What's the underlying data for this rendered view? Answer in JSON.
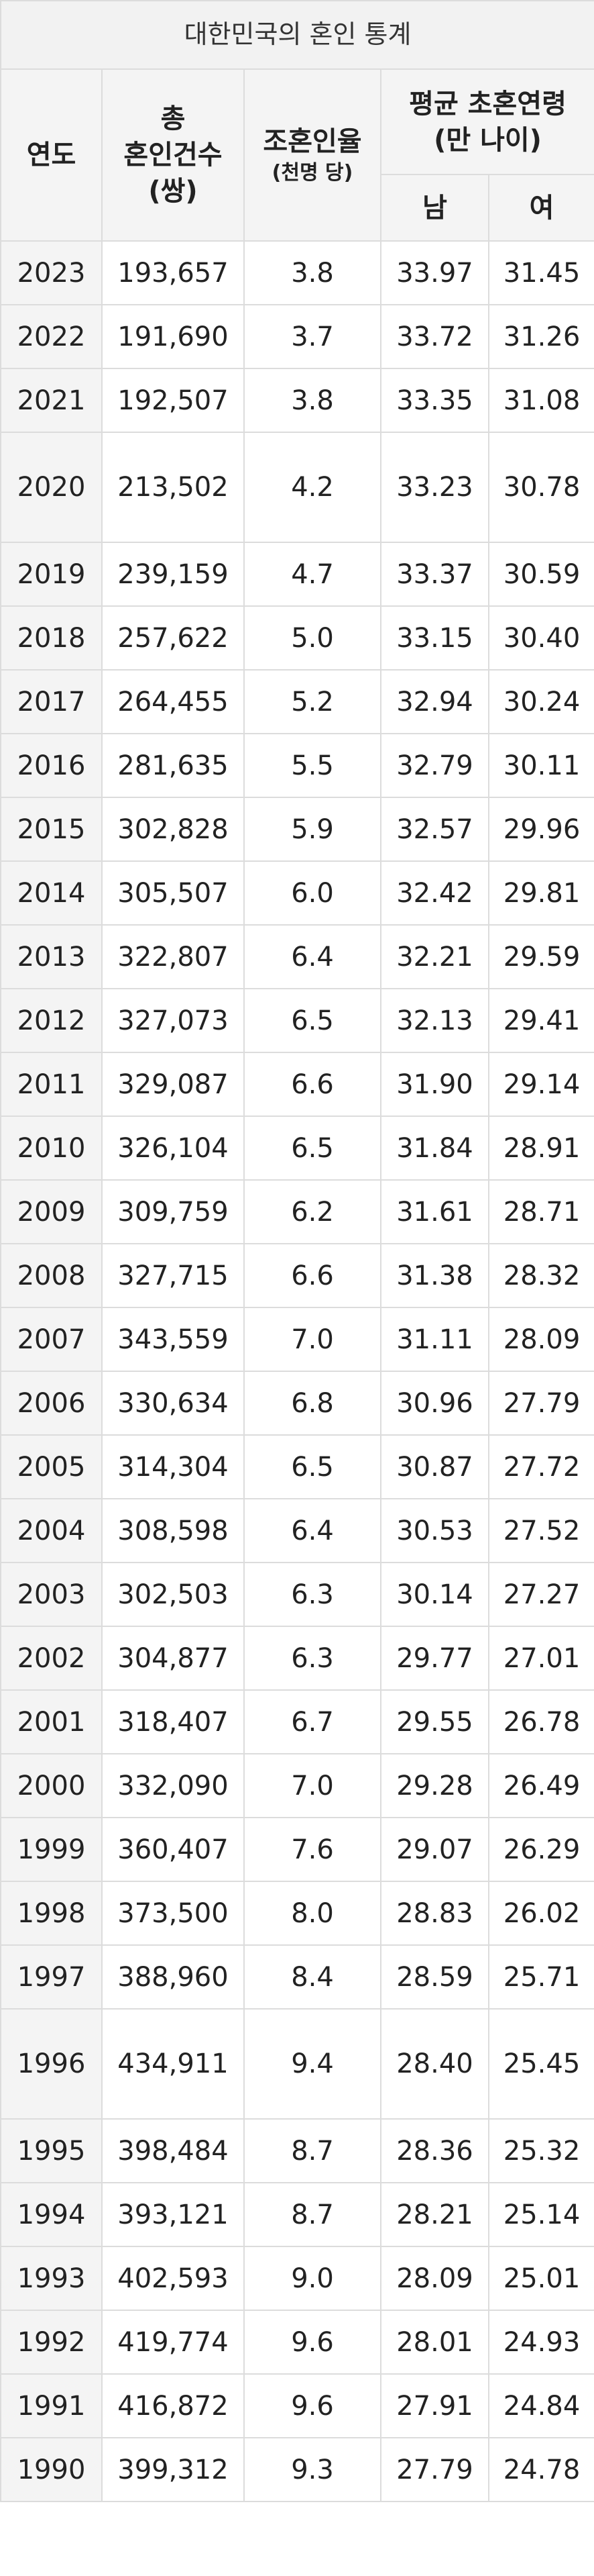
{
  "table": {
    "caption": "대한민국의 혼인 통계",
    "headers": {
      "year": "연도",
      "total": [
        "총",
        "혼인건수",
        "(쌍)"
      ],
      "rate": [
        "조혼인율",
        "(천명 당)"
      ],
      "age": [
        "평균 초혼연령",
        "(만 나이)"
      ],
      "male": "남",
      "female": "여"
    },
    "rows": [
      [
        "2023",
        "193,657",
        "3.8",
        "33.97",
        "31.45"
      ],
      [
        "2022",
        "191,690",
        "3.7",
        "33.72",
        "31.26"
      ],
      [
        "2021",
        "192,507",
        "3.8",
        "33.35",
        "31.08"
      ],
      [
        "2020",
        "213,502",
        "4.2",
        "33.23",
        "30.78"
      ],
      [
        "2019",
        "239,159",
        "4.7",
        "33.37",
        "30.59"
      ],
      [
        "2018",
        "257,622",
        "5.0",
        "33.15",
        "30.40"
      ],
      [
        "2017",
        "264,455",
        "5.2",
        "32.94",
        "30.24"
      ],
      [
        "2016",
        "281,635",
        "5.5",
        "32.79",
        "30.11"
      ],
      [
        "2015",
        "302,828",
        "5.9",
        "32.57",
        "29.96"
      ],
      [
        "2014",
        "305,507",
        "6.0",
        "32.42",
        "29.81"
      ],
      [
        "2013",
        "322,807",
        "6.4",
        "32.21",
        "29.59"
      ],
      [
        "2012",
        "327,073",
        "6.5",
        "32.13",
        "29.41"
      ],
      [
        "2011",
        "329,087",
        "6.6",
        "31.90",
        "29.14"
      ],
      [
        "2010",
        "326,104",
        "6.5",
        "31.84",
        "28.91"
      ],
      [
        "2009",
        "309,759",
        "6.2",
        "31.61",
        "28.71"
      ],
      [
        "2008",
        "327,715",
        "6.6",
        "31.38",
        "28.32"
      ],
      [
        "2007",
        "343,559",
        "7.0",
        "31.11",
        "28.09"
      ],
      [
        "2006",
        "330,634",
        "6.8",
        "30.96",
        "27.79"
      ],
      [
        "2005",
        "314,304",
        "6.5",
        "30.87",
        "27.72"
      ],
      [
        "2004",
        "308,598",
        "6.4",
        "30.53",
        "27.52"
      ],
      [
        "2003",
        "302,503",
        "6.3",
        "30.14",
        "27.27"
      ],
      [
        "2002",
        "304,877",
        "6.3",
        "29.77",
        "27.01"
      ],
      [
        "2001",
        "318,407",
        "6.7",
        "29.55",
        "26.78"
      ],
      [
        "2000",
        "332,090",
        "7.0",
        "29.28",
        "26.49"
      ],
      [
        "1999",
        "360,407",
        "7.6",
        "29.07",
        "26.29"
      ],
      [
        "1998",
        "373,500",
        "8.0",
        "28.83",
        "26.02"
      ],
      [
        "1997",
        "388,960",
        "8.4",
        "28.59",
        "25.71"
      ],
      [
        "1996",
        "434,911",
        "9.4",
        "28.40",
        "25.45"
      ],
      [
        "1995",
        "398,484",
        "8.7",
        "28.36",
        "25.32"
      ],
      [
        "1994",
        "393,121",
        "8.7",
        "28.21",
        "25.14"
      ],
      [
        "1993",
        "402,593",
        "9.0",
        "28.09",
        "25.01"
      ],
      [
        "1992",
        "419,774",
        "9.6",
        "28.01",
        "24.93"
      ],
      [
        "1991",
        "416,872",
        "9.6",
        "27.91",
        "24.84"
      ],
      [
        "1990",
        "399,312",
        "9.3",
        "27.79",
        "24.78"
      ]
    ]
  }
}
